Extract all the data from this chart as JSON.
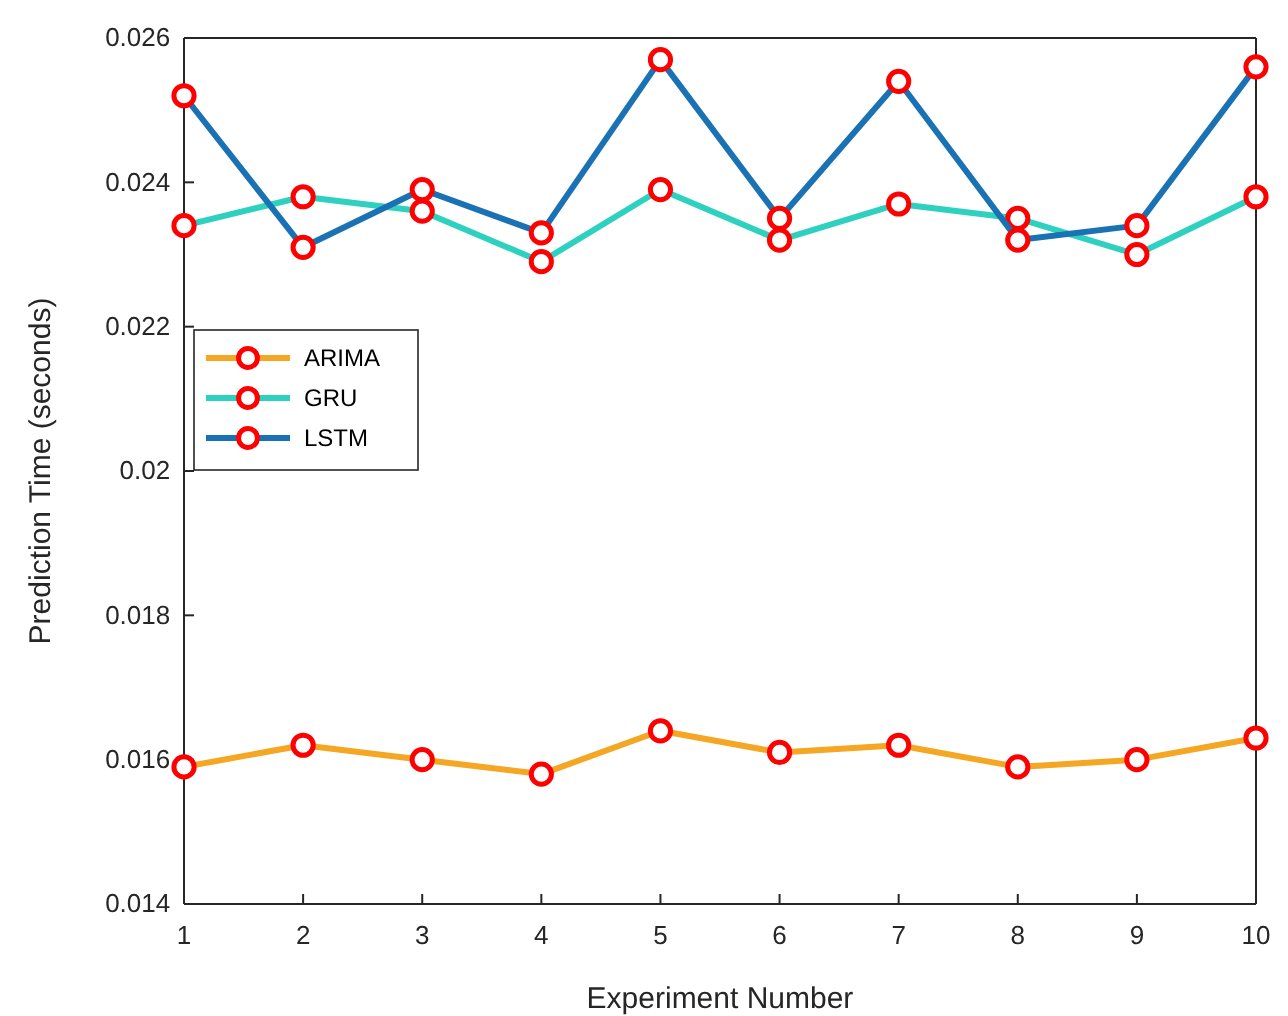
{
  "chart_data": {
    "type": "line",
    "xlabel": "Experiment Number",
    "ylabel": "Prediction Time (seconds)",
    "x": [
      1,
      2,
      3,
      4,
      5,
      6,
      7,
      8,
      9,
      10
    ],
    "series": [
      {
        "name": "ARIMA",
        "color": "#f5a623",
        "values": [
          0.0159,
          0.0162,
          0.016,
          0.0158,
          0.0164,
          0.0161,
          0.0162,
          0.0159,
          0.016,
          0.0163
        ]
      },
      {
        "name": "GRU",
        "color": "#2ed1c0",
        "values": [
          0.0234,
          0.0238,
          0.0236,
          0.0229,
          0.0239,
          0.0232,
          0.0237,
          0.0235,
          0.023,
          0.0238
        ]
      },
      {
        "name": "LSTM",
        "color": "#1a72b5",
        "values": [
          0.0252,
          0.0231,
          0.0239,
          0.0233,
          0.0257,
          0.0235,
          0.0254,
          0.0232,
          0.0234,
          0.0256
        ]
      }
    ],
    "xlim": [
      1,
      10
    ],
    "xticks": [
      1,
      2,
      3,
      4,
      5,
      6,
      7,
      8,
      9,
      10
    ],
    "ylim": [
      0.014,
      0.026
    ],
    "yticks": [
      0.014,
      0.016,
      0.018,
      0.02,
      0.022,
      0.024,
      0.026
    ],
    "legend": "top left",
    "marker": "circle",
    "line_style": "solid",
    "grid": false
  }
}
